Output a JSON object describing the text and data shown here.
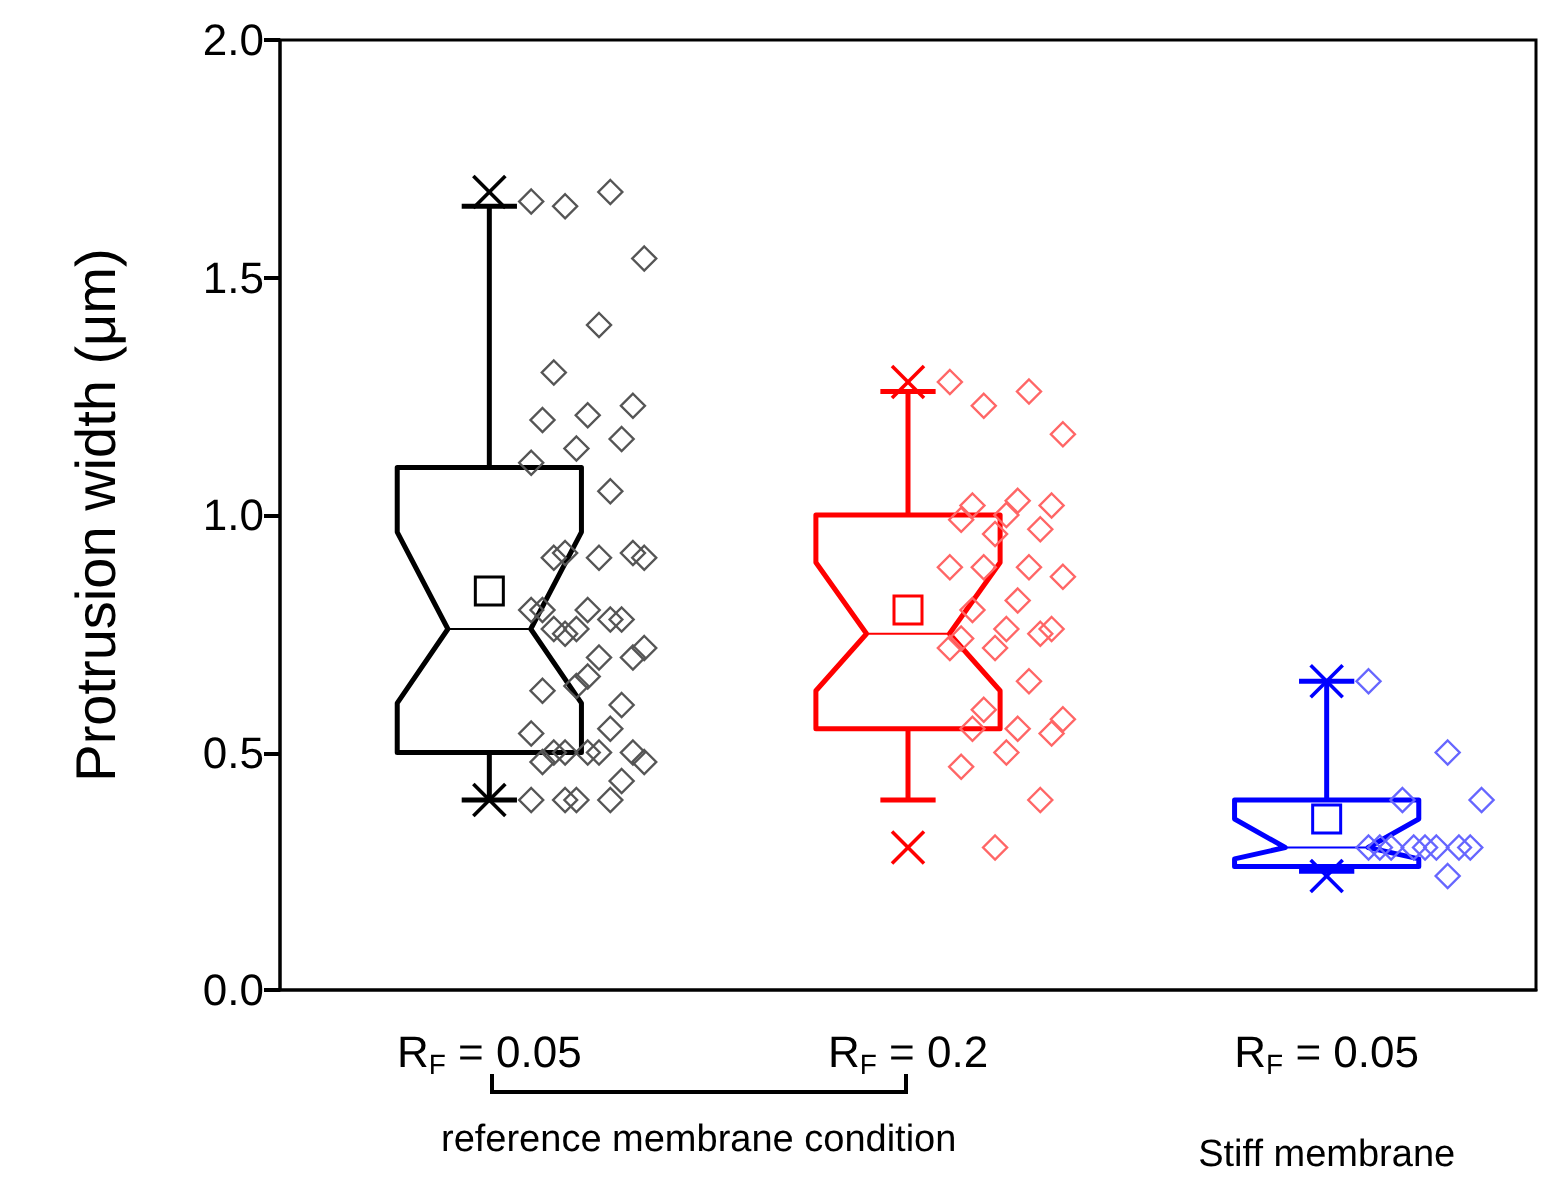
{
  "chart_data": {
    "type": "box",
    "ylabel": "Protrusion width (μm)",
    "categories": [
      "R$_{F}$ = 0.05",
      "R$_{F}$ = 0.2",
      "R$_{F}$ = 0.05\nStiff membrane"
    ],
    "ylim": [
      0,
      2
    ],
    "yticks": [
      {
        "value": 0,
        "label": "0.0"
      },
      {
        "value": 0.5,
        "label": "0.5"
      },
      {
        "value": 1,
        "label": "1.0"
      },
      {
        "value": 1.5,
        "label": "1.5"
      },
      {
        "value": 2,
        "label": "2.0"
      }
    ],
    "annotations": [
      "reference membrane condition"
    ],
    "series": [
      {
        "colors": [
          "#000000",
          "#ff0000",
          "#0000ff"
        ],
        "boxes": [
          {
            "low": 0.4,
            "q1": 0.5,
            "median": 0.76,
            "q3": 1.1,
            "high": 1.65,
            "mean": 0.84,
            "outliers": [
              1.68,
              0.4
            ]
          },
          {
            "low": 0.4,
            "q1": 0.55,
            "median": 0.75,
            "q3": 1.0,
            "high": 1.26,
            "mean": 0.8,
            "outliers": [
              1.28,
              0.3
            ]
          },
          {
            "low": 0.25,
            "q1": 0.26,
            "median": 0.3,
            "q3": 0.4,
            "high": 0.65,
            "mean": 0.36,
            "outliers": [
              0.65,
              0.24
            ]
          }
        ]
      },
      {
        "type": "scatter",
        "marker": "diamond",
        "color": "#555555",
        "x": [
          "R$_{F}$ = 0.05",
          "R$_{F}$ = 0.05",
          "R$_{F}$ = 0.05",
          "R$_{F}$ = 0.05",
          "R$_{F}$ = 0.05",
          "R$_{F}$ = 0.05",
          "R$_{F}$ = 0.05",
          "R$_{F}$ = 0.05",
          "R$_{F}$ = 0.05",
          "R$_{F}$ = 0.05",
          "R$_{F}$ = 0.05",
          "R$_{F}$ = 0.05",
          "R$_{F}$ = 0.05",
          "R$_{F}$ = 0.05",
          "R$_{F}$ = 0.05",
          "R$_{F}$ = 0.05",
          "R$_{F}$ = 0.05",
          "R$_{F}$ = 0.05",
          "R$_{F}$ = 0.05",
          "R$_{F}$ = 0.05",
          "R$_{F}$ = 0.05",
          "R$_{F}$ = 0.05",
          "R$_{F}$ = 0.05",
          "R$_{F}$ = 0.05",
          "R$_{F}$ = 0.05",
          "R$_{F}$ = 0.05",
          "R$_{F}$ = 0.05",
          "R$_{F}$ = 0.05",
          "R$_{F}$ = 0.05",
          "R$_{F}$ = 0.05",
          "R$_{F}$ = 0.05",
          "R$_{F}$ = 0.05",
          "R$_{F}$ = 0.05",
          "R$_{F}$ = 0.05",
          "R$_{F}$ = 0.05",
          "R$_{F}$ = 0.05",
          "R$_{F}$ = 0.05",
          "R$_{F}$ = 0.05",
          "R$_{F}$ = 0.05",
          "R$_{F}$ = 0.05",
          "R$_{F}$ = 0.05",
          "R$_{F}$ = 0.05",
          "R$_{F}$ = 0.05",
          "R$_{F}$ = 0.05",
          "R$_{F}$ = 0.05",
          "R$_{F}$ = 0.05",
          "R$_{F}$ = 0.05"
        ],
        "values": [
          1.66,
          1.68,
          1.65,
          1.54,
          1.4,
          1.3,
          1.23,
          1.21,
          1.2,
          1.16,
          1.14,
          1.11,
          1.05,
          0.92,
          0.91,
          0.91,
          0.91,
          0.92,
          0.8,
          0.8,
          0.78,
          0.76,
          0.8,
          0.78,
          0.75,
          0.72,
          0.7,
          0.76,
          0.7,
          0.66,
          0.63,
          0.6,
          0.64,
          0.54,
          0.55,
          0.5,
          0.48,
          0.5,
          0.5,
          0.5,
          0.5,
          0.48,
          0.44,
          0.4,
          0.4,
          0.4,
          0.4
        ]
      },
      {
        "type": "scatter",
        "marker": "diamond",
        "color": "#ff6666",
        "x": [
          "R$_{F}$ = 0.2",
          "R$_{F}$ = 0.2",
          "R$_{F}$ = 0.2",
          "R$_{F}$ = 0.2",
          "R$_{F}$ = 0.2",
          "R$_{F}$ = 0.2",
          "R$_{F}$ = 0.2",
          "R$_{F}$ = 0.2",
          "R$_{F}$ = 0.2",
          "R$_{F}$ = 0.2",
          "R$_{F}$ = 0.2",
          "R$_{F}$ = 0.2",
          "R$_{F}$ = 0.2",
          "R$_{F}$ = 0.2",
          "R$_{F}$ = 0.2",
          "R$_{F}$ = 0.2",
          "R$_{F}$ = 0.2",
          "R$_{F}$ = 0.2",
          "R$_{F}$ = 0.2",
          "R$_{F}$ = 0.2",
          "R$_{F}$ = 0.2",
          "R$_{F}$ = 0.2",
          "R$_{F}$ = 0.2",
          "R$_{F}$ = 0.2",
          "R$_{F}$ = 0.2",
          "R$_{F}$ = 0.2",
          "R$_{F}$ = 0.2",
          "R$_{F}$ = 0.2",
          "R$_{F}$ = 0.2",
          "R$_{F}$ = 0.2",
          "R$_{F}$ = 0.2",
          "R$_{F}$ = 0.2",
          "R$_{F}$ = 0.2"
        ],
        "values": [
          1.28,
          1.26,
          1.23,
          1.17,
          1.03,
          1.02,
          1.02,
          1.0,
          0.99,
          0.97,
          0.96,
          0.89,
          0.89,
          0.89,
          0.87,
          0.82,
          0.8,
          0.76,
          0.76,
          0.74,
          0.75,
          0.72,
          0.72,
          0.65,
          0.59,
          0.57,
          0.55,
          0.55,
          0.54,
          0.5,
          0.47,
          0.4,
          0.3
        ]
      },
      {
        "type": "scatter",
        "marker": "diamond",
        "color": "#6666ff",
        "x": [
          "R$_{F}$ = 0.05\nStiff membrane",
          "R$_{F}$ = 0.05\nStiff membrane",
          "R$_{F}$ = 0.05\nStiff membrane",
          "R$_{F}$ = 0.05\nStiff membrane",
          "R$_{F}$ = 0.05\nStiff membrane",
          "R$_{F}$ = 0.05\nStiff membrane",
          "R$_{F}$ = 0.05\nStiff membrane",
          "R$_{F}$ = 0.05\nStiff membrane",
          "R$_{F}$ = 0.05\nStiff membrane",
          "R$_{F}$ = 0.05\nStiff membrane",
          "R$_{F}$ = 0.05\nStiff membrane",
          "R$_{F}$ = 0.05\nStiff membrane",
          "R$_{F}$ = 0.05\nStiff membrane"
        ],
        "values": [
          0.65,
          0.5,
          0.4,
          0.4,
          0.3,
          0.3,
          0.3,
          0.3,
          0.3,
          0.3,
          0.3,
          0.3,
          0.24
        ]
      }
    ]
  }
}
